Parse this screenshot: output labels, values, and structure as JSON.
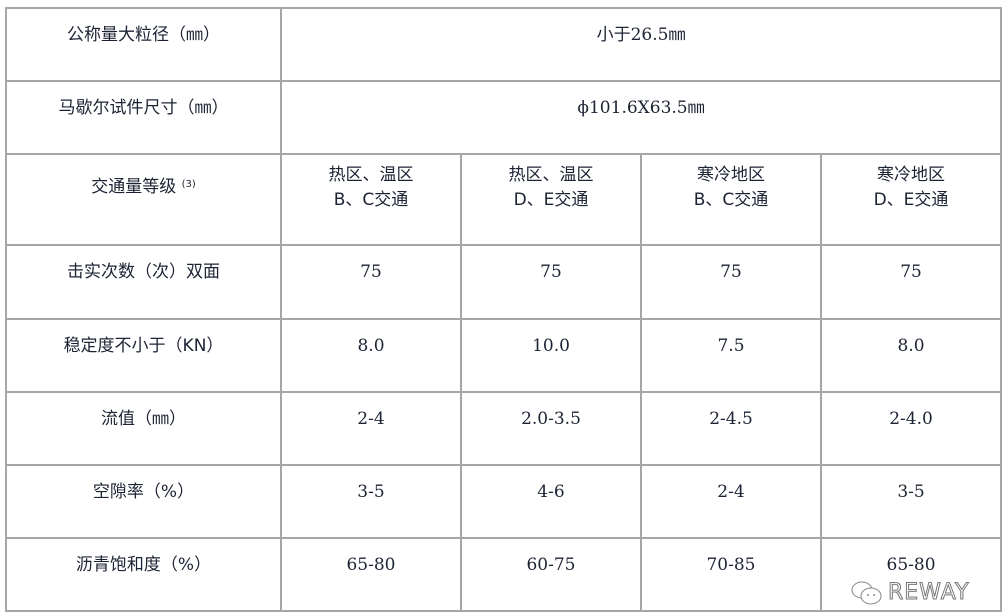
{
  "table": {
    "rows": [
      {
        "label": "公称量大粒径（㎜）",
        "span_value": "小于26.5㎜"
      },
      {
        "label": "马歇尔试件尺寸（㎜）",
        "span_value": "ϕ101.6X63.5㎜"
      },
      {
        "label": "交通量等级",
        "label_sup": "(3)",
        "headers": [
          [
            "热区、温区",
            "B、C交通"
          ],
          [
            "热区、温区",
            "D、E交通"
          ],
          [
            "寒冷地区",
            "B、C交通"
          ],
          [
            "寒冷地区",
            "D、E交通"
          ]
        ]
      },
      {
        "label": "击实次数（次）双面",
        "values": [
          "75",
          "75",
          "75",
          "75"
        ]
      },
      {
        "label": "稳定度不小于（KN）",
        "values": [
          "8.0",
          "10.0",
          "7.5",
          "8.0"
        ]
      },
      {
        "label": "流值（㎜）",
        "values": [
          "2-4",
          "2.0-3.5",
          "2-4.5",
          "2-4.0"
        ]
      },
      {
        "label": "空隙率（%）",
        "values": [
          "3-5",
          "4-6",
          "2-4",
          "3-5"
        ]
      },
      {
        "label": "沥青饱和度（%）",
        "values": [
          "65-80",
          "60-75",
          "70-85",
          "65-80"
        ]
      }
    ]
  },
  "watermark": {
    "text": "REWAY",
    "icon": "wechat-icon"
  },
  "colors": {
    "border": "#a6a6a6",
    "text": "#1c2333"
  }
}
